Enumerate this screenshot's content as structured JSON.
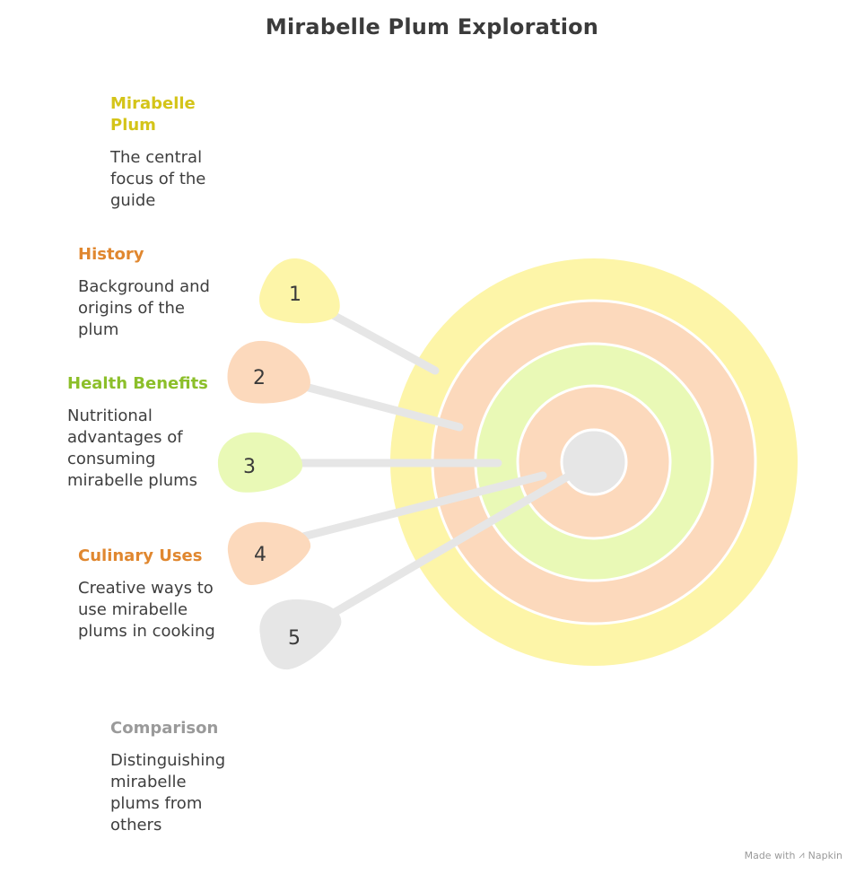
{
  "title": "Mirabelle Plum Exploration",
  "items": [
    {
      "number": "1",
      "heading": "Mirabelle Plum",
      "description": "The central focus of the guide",
      "color": "#d4c419",
      "fill": "#fdf5a8"
    },
    {
      "number": "2",
      "heading": "History",
      "description": "Background and origins of the plum",
      "color": "#e0872f",
      "fill": "#fcd9bc"
    },
    {
      "number": "3",
      "heading": "Health Benefits",
      "description": "Nutritional advantages of consuming mirabelle plums",
      "color": "#8cbf2a",
      "fill": "#e9f9b6"
    },
    {
      "number": "4",
      "heading": "Culinary Uses",
      "description": "Creative ways to use mirabelle plums in cooking",
      "color": "#e0872f",
      "fill": "#fcd9bc"
    },
    {
      "number": "5",
      "heading": "Comparison",
      "description": "Distinguishing mirabelle plums from others",
      "color": "#9a9a9a",
      "fill": "#e6e6e6"
    }
  ],
  "footer": {
    "made_with": "Made with",
    "brand": "Napkin"
  }
}
